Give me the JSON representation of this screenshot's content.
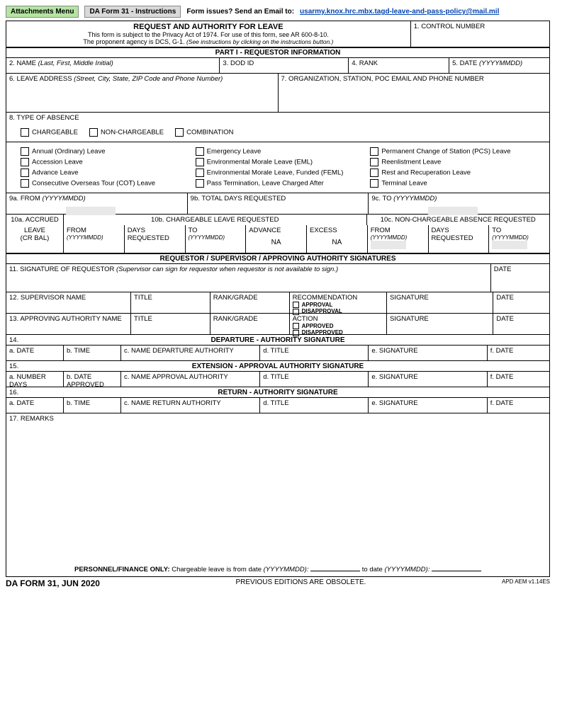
{
  "top": {
    "attachments": "Attachments Menu",
    "instructions": "DA Form 31 - Instructions",
    "issues": "Form issues? Send an Email to:",
    "email": "usarmy.knox.hrc.mbx.tagd-leave-and-pass-policy@mail.mil"
  },
  "header": {
    "title": "REQUEST AND AUTHORITY FOR LEAVE",
    "sub1": "This form is subject to the Privacy Act of 1974. For use of this form, see AR 600-8-10.",
    "sub2_a": "The proponent agency is DCS, G-1. ",
    "sub2_b": "(See instructions by clicking on the instructions button.)",
    "f1": "1. CONTROL NUMBER"
  },
  "part1": {
    "bar": "PART I - REQUESTOR  INFORMATION",
    "f2": "2. NAME ",
    "f2_it": "(Last, First, Middle Initial)",
    "f3": "3. DOD ID",
    "f4": "4. RANK",
    "f5": "5. DATE ",
    "f5_it": "(YYYYMMDD)",
    "f6": "6. LEAVE ADDRESS ",
    "f6_it": "(Street, City, State, ZIP Code and Phone Number)",
    "f7": "7. ORGANIZATION, STATION, POC EMAIL AND PHONE NUMBER"
  },
  "absence": {
    "f8": "8. TYPE OF ABSENCE",
    "c1": "CHARGEABLE",
    "c2": "NON-CHARGEABLE",
    "c3": "COMBINATION",
    "col1": [
      "Annual (Ordinary) Leave",
      "Accession Leave",
      "Advance Leave",
      "Consecutive Overseas Tour (COT) Leave"
    ],
    "col2": [
      "Emergency Leave",
      "Environmental Morale Leave (EML)",
      "Environmental Morale Leave, Funded (FEML)",
      "Pass Termination, Leave Charged After"
    ],
    "col3": [
      "Permanent Change of Station (PCS) Leave",
      "Reenlistment Leave",
      "Rest and Recuperation Leave",
      "Terminal Leave"
    ]
  },
  "nine": {
    "a": "9a. FROM ",
    "a_it": "(YYYYMMDD)",
    "b": "9b. TOTAL DAYS REQUESTED",
    "c": "9c. TO ",
    "c_it": "(YYYYMMDD)"
  },
  "ten": {
    "a1": "10a. ACCRUED",
    "a2": "LEAVE",
    "a3": "(CR BAL)",
    "b": "10b. CHARGEABLE LEAVE REQUESTED",
    "c": "10c. NON-CHARGEABLE ABSENCE REQUESTED",
    "from": "FROM",
    "yy": "(YYYYMMDD)",
    "days": "DAYS REQUESTED",
    "to": "TO",
    "adv": "ADVANCE",
    "exc": "EXCESS",
    "na": "NA"
  },
  "sig": {
    "bar": "REQUESTOR / SUPERVISOR / APPROVING AUTHORITY SIGNATURES",
    "f11": "11.  SIGNATURE OF REQUESTOR ",
    "f11_it": "(Supervisor can sign for requestor when requestor is not available to sign.)",
    "date": "DATE",
    "f12": "12. SUPERVISOR NAME",
    "title": "TITLE",
    "rank": "RANK/GRADE",
    "rec": "RECOMMENDATION",
    "appr": "APPROVAL",
    "disappr": "DISAPPROVAL",
    "signature": "SIGNATURE",
    "f13": "13. APPROVING AUTHORITY NAME",
    "action": "ACTION",
    "approved": "APPROVED",
    "disapproved": "DISAPPROVED"
  },
  "dep": {
    "f14": "14.",
    "bar": "DEPARTURE - AUTHORITY SIGNATURE",
    "a": "a. DATE",
    "b": "b. TIME",
    "c": "c. NAME DEPARTURE AUTHORITY",
    "d": "d. TITLE",
    "e": "e. SIGNATURE",
    "f": "f. DATE"
  },
  "ext": {
    "f15": "15.",
    "bar": "EXTENSION - APPROVAL AUTHORITY SIGNATURE",
    "a": "a. NUMBER DAYS",
    "b": "b. DATE APPROVED",
    "c": "c. NAME APPROVAL AUTHORITY",
    "d": "d. TITLE",
    "e": "e. SIGNATURE",
    "f": "f. DATE"
  },
  "ret": {
    "f16": "16.",
    "bar": "RETURN - AUTHORITY SIGNATURE",
    "a": "a. DATE",
    "b": "b. TIME",
    "c": "c. NAME RETURN AUTHORITY",
    "d": "d. TITLE",
    "e": "e. SIGNATURE",
    "f": "f. DATE"
  },
  "remarks": {
    "f17": "17. REMARKS",
    "pf1": "PERSONNEL/FINANCE ONLY:",
    "pf2": " Chargeable leave is from date ",
    "pf_it": "(YYYYMMDD):",
    "pf3": " to date "
  },
  "footer": {
    "left": "DA FORM 31, JUN 2020",
    "mid": "PREVIOUS EDITIONS ARE OBSOLETE.",
    "right": "APD AEM v1.14ES"
  }
}
